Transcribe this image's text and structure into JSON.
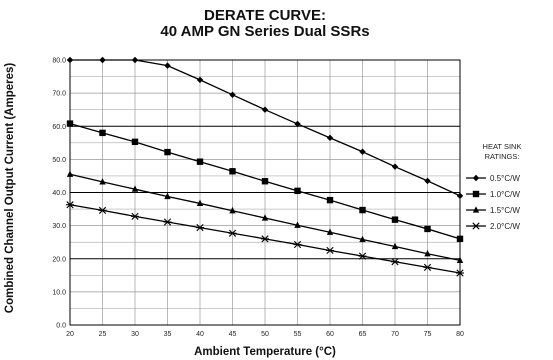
{
  "chart_data": {
    "type": "line",
    "title_line1": "DERATE CURVE:",
    "title_line2": "40 AMP GN Series Dual SSRs",
    "xlabel": "Ambient Temperature (°C)",
    "ylabel": "Combined Channel Output Current (Amperes)",
    "x": [
      20,
      25,
      30,
      35,
      40,
      45,
      50,
      55,
      60,
      65,
      70,
      75,
      80
    ],
    "x_ticks": [
      "20",
      "25",
      "30",
      "35",
      "40",
      "45",
      "50",
      "55",
      "60",
      "65",
      "70",
      "75",
      "80"
    ],
    "y_ticks": [
      "0.0",
      "10.0",
      "20.0",
      "30.0",
      "40.0",
      "50.0",
      "60.0",
      "70.0",
      "80.0"
    ],
    "xlim": [
      20,
      80
    ],
    "ylim": [
      0,
      80
    ],
    "grid": true,
    "legend_title_line1": "HEAT SINK",
    "legend_title_line2": "RATINGS:",
    "legend_position": "right",
    "series": [
      {
        "name": "0.5°C/W",
        "marker": "diamond",
        "values": [
          80,
          80,
          80,
          78.3,
          74,
          69.5,
          65,
          60.7,
          56.5,
          52.3,
          47.8,
          43.5,
          39
        ]
      },
      {
        "name": "1.0°C/W",
        "marker": "square",
        "values": [
          60.8,
          58,
          55.3,
          52.2,
          49.3,
          46.4,
          43.4,
          40.5,
          37.7,
          34.7,
          31.8,
          29,
          26
        ]
      },
      {
        "name": "1.5°C/W",
        "marker": "triangle",
        "values": [
          45.5,
          43.2,
          41,
          38.8,
          36.7,
          34.5,
          32.3,
          30.1,
          28,
          25.8,
          23.7,
          21.5,
          19.5
        ]
      },
      {
        "name": "2.0°C/W",
        "marker": "star",
        "values": [
          36.3,
          34.6,
          32.8,
          31.1,
          29.4,
          27.7,
          26,
          24.3,
          22.5,
          20.8,
          19.1,
          17.4,
          15.7
        ]
      }
    ],
    "colors": {
      "line": "#000000",
      "grid": "#9a9a9a",
      "major_grid": "#000000"
    }
  }
}
